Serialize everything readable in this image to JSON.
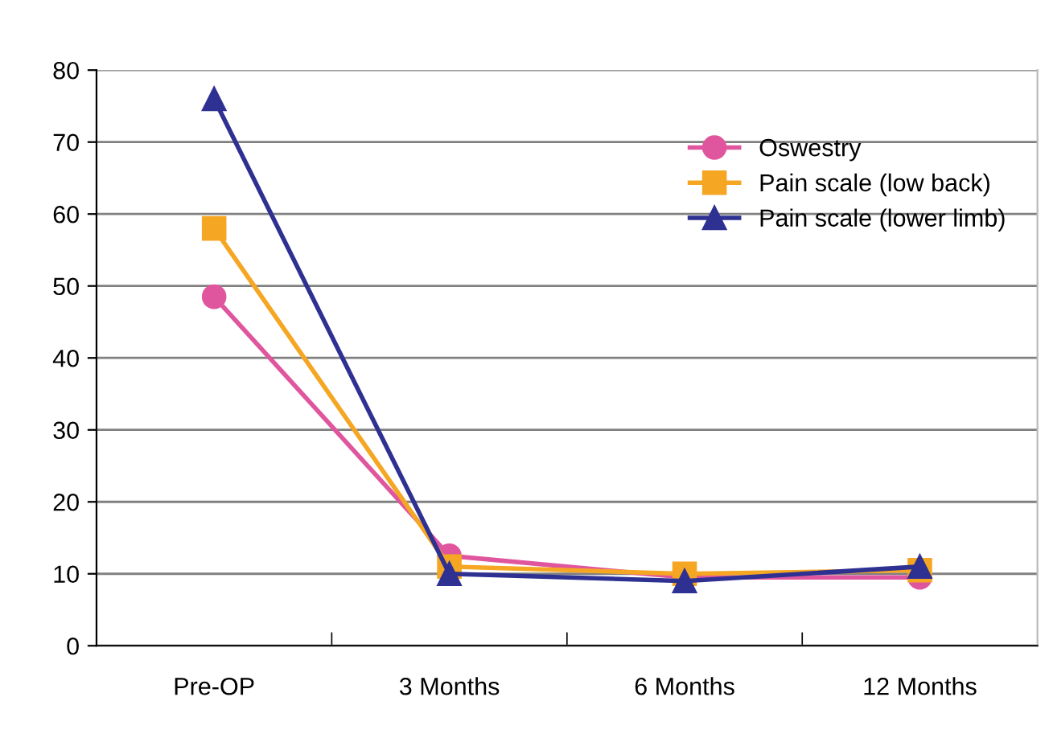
{
  "chart_data": {
    "type": "line",
    "categories": [
      "Pre-OP",
      "3 Months",
      "6 Months",
      "12 Months"
    ],
    "series": [
      {
        "name": "Oswestry",
        "color": "#e0569e",
        "marker": "circle",
        "values": [
          48.5,
          12.5,
          9.5,
          9.5
        ]
      },
      {
        "name": "Pain scale (low back)",
        "color": "#f5a623",
        "marker": "square",
        "values": [
          58,
          11,
          10,
          10.5
        ]
      },
      {
        "name": "Pain scale (lower limb)",
        "color": "#2e3192",
        "marker": "triangle",
        "values": [
          76,
          10,
          9,
          11
        ]
      }
    ],
    "ylim": [
      0,
      80
    ],
    "yticks": [
      0,
      10,
      20,
      30,
      40,
      50,
      60,
      70,
      80
    ],
    "grid": "y",
    "legend": "top right",
    "line_style": "solid"
  }
}
